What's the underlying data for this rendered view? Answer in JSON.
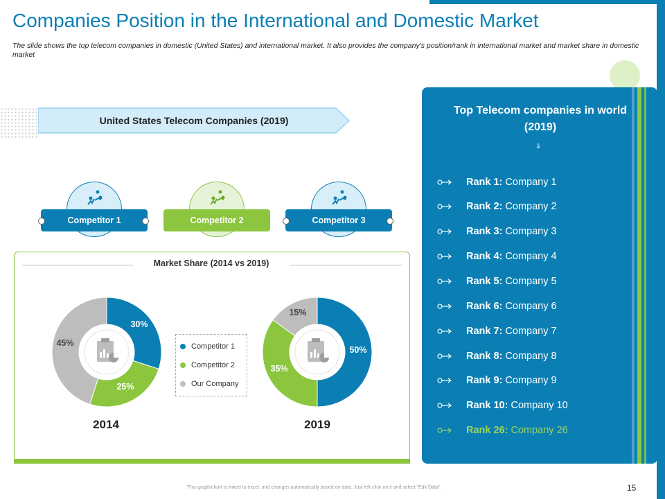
{
  "slide": {
    "title": "Companies Position in the International and Domestic Market",
    "subtitle": "The slide shows the top telecom companies in domestic (United States) and international market. It also provides the company's position/rank in international market and market share in domestic market",
    "page_number": "15",
    "footer_note": "This graph/chart is linked to excel, and changes automatically based on data. Just left click on it and select \"Edit Data\"."
  },
  "us_section": {
    "banner": "United States Telecom Companies (2019)",
    "competitors": [
      {
        "label": "Competitor 1",
        "color": "#0b7fb4",
        "icon": "network-people-icon"
      },
      {
        "label": "Competitor 2",
        "color": "#8cc63f",
        "icon": "network-people-icon"
      },
      {
        "label": "Competitor 3",
        "color": "#0b7fb4",
        "icon": "network-people-icon"
      }
    ]
  },
  "market_share": {
    "title": "Market Share (2014 vs 2019)",
    "legend": [
      {
        "label": "Competitor 1",
        "color": "#0b7fb4"
      },
      {
        "label": "Competitor 2",
        "color": "#8cc63f"
      },
      {
        "label": "Our Company",
        "color": "#bdbdbd"
      }
    ]
  },
  "chart_data": [
    {
      "type": "pie",
      "title": "2014",
      "categories": [
        "Competitor 1",
        "Competitor 2",
        "Our Company"
      ],
      "values": [
        30,
        25,
        45
      ],
      "labels": [
        "30%",
        "25%",
        "45%"
      ],
      "colors": [
        "#0b7fb4",
        "#8cc63f",
        "#bdbdbd"
      ]
    },
    {
      "type": "pie",
      "title": "2019",
      "categories": [
        "Competitor 1",
        "Competitor 2",
        "Our Company"
      ],
      "values": [
        50,
        35,
        15
      ],
      "labels": [
        "50%",
        "35%",
        "15%"
      ],
      "colors": [
        "#0b7fb4",
        "#8cc63f",
        "#bdbdbd"
      ]
    }
  ],
  "world_ranking": {
    "title": "Top Telecom companies in world (2019)",
    "items": [
      {
        "rank": "Rank 1:",
        "company": "Company 1"
      },
      {
        "rank": "Rank 2:",
        "company": "Company 2"
      },
      {
        "rank": "Rank 3:",
        "company": "Company 3"
      },
      {
        "rank": "Rank 4:",
        "company": "Company 4"
      },
      {
        "rank": "Rank 5:",
        "company": "Company 5"
      },
      {
        "rank": "Rank 6:",
        "company": "Company 6"
      },
      {
        "rank": "Rank 7:",
        "company": "Company 7"
      },
      {
        "rank": "Rank 8:",
        "company": "Company 8"
      },
      {
        "rank": "Rank 9:",
        "company": "Company 9"
      },
      {
        "rank": "Rank 10:",
        "company": "Company 10"
      },
      {
        "rank": "Rank 26:",
        "company": "Company 26"
      }
    ],
    "highlight_color": "#9ed45a"
  }
}
